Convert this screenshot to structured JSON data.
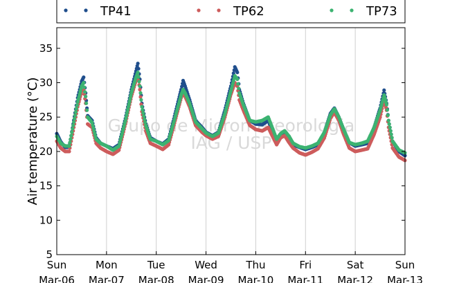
{
  "chart_data": {
    "type": "scatter",
    "ylabel": "Air temperature (°C)",
    "xlabel": "",
    "ylim": [
      5,
      38
    ],
    "yticks": [
      5,
      10,
      15,
      20,
      25,
      30,
      35
    ],
    "xlim": [
      0,
      7
    ],
    "xticks": [
      {
        "day": "Sun",
        "date": "Mar-06"
      },
      {
        "day": "Mon",
        "date": "Mar-07"
      },
      {
        "day": "Tue",
        "date": "Mar-08"
      },
      {
        "day": "Wed",
        "date": "Mar-09"
      },
      {
        "day": "Thu",
        "date": "Mar-10"
      },
      {
        "day": "Fri",
        "date": "Mar-11"
      },
      {
        "day": "Sat",
        "date": "Mar-12"
      },
      {
        "day": "Sun",
        "date": "Mar-13"
      }
    ],
    "grid": "vertical",
    "legend_position": "top",
    "watermark": [
      "Grupo de Micrometeorologia",
      "IAG / USP"
    ],
    "series": [
      {
        "name": "TP41",
        "color": "#1f4e8c",
        "points": [
          [
            0.0,
            22.6
          ],
          [
            0.08,
            21.4
          ],
          [
            0.17,
            20.6
          ],
          [
            0.25,
            20.6
          ],
          [
            0.33,
            24.0
          ],
          [
            0.42,
            27.8
          ],
          [
            0.5,
            30.2
          ],
          [
            0.54,
            30.8
          ],
          [
            0.58,
            28.5
          ],
          [
            0.62,
            25.2
          ],
          [
            0.71,
            24.5
          ],
          [
            0.79,
            22.0
          ],
          [
            0.88,
            21.2
          ],
          [
            1.0,
            20.8
          ],
          [
            1.13,
            20.4
          ],
          [
            1.25,
            21.0
          ],
          [
            1.38,
            24.8
          ],
          [
            1.5,
            29.0
          ],
          [
            1.58,
            31.3
          ],
          [
            1.63,
            32.8
          ],
          [
            1.67,
            30.5
          ],
          [
            1.71,
            27.0
          ],
          [
            1.79,
            24.0
          ],
          [
            1.88,
            22.0
          ],
          [
            2.0,
            21.5
          ],
          [
            2.13,
            21.1
          ],
          [
            2.25,
            21.8
          ],
          [
            2.38,
            25.5
          ],
          [
            2.5,
            29.0
          ],
          [
            2.54,
            30.3
          ],
          [
            2.58,
            29.5
          ],
          [
            2.67,
            27.5
          ],
          [
            2.79,
            24.5
          ],
          [
            2.92,
            23.5
          ],
          [
            3.0,
            22.8
          ],
          [
            3.13,
            22.3
          ],
          [
            3.25,
            22.8
          ],
          [
            3.38,
            26.0
          ],
          [
            3.5,
            29.5
          ],
          [
            3.58,
            32.3
          ],
          [
            3.63,
            31.5
          ],
          [
            3.67,
            29.0
          ],
          [
            3.75,
            27.0
          ],
          [
            3.88,
            24.5
          ],
          [
            4.0,
            24.0
          ],
          [
            4.13,
            23.9
          ],
          [
            4.25,
            24.5
          ],
          [
            4.33,
            23.0
          ],
          [
            4.42,
            21.5
          ],
          [
            4.5,
            22.5
          ],
          [
            4.58,
            22.8
          ],
          [
            4.67,
            22.0
          ],
          [
            4.75,
            21.0
          ],
          [
            4.88,
            20.6
          ],
          [
            5.0,
            20.3
          ],
          [
            5.13,
            20.6
          ],
          [
            5.25,
            21.0
          ],
          [
            5.38,
            22.8
          ],
          [
            5.5,
            25.5
          ],
          [
            5.58,
            26.3
          ],
          [
            5.67,
            25.0
          ],
          [
            5.75,
            23.5
          ],
          [
            5.88,
            21.3
          ],
          [
            6.0,
            20.8
          ],
          [
            6.13,
            21.0
          ],
          [
            6.25,
            21.2
          ],
          [
            6.38,
            23.5
          ],
          [
            6.5,
            26.3
          ],
          [
            6.58,
            28.9
          ],
          [
            6.63,
            27.0
          ],
          [
            6.67,
            24.5
          ],
          [
            6.75,
            21.5
          ],
          [
            6.88,
            20.0
          ],
          [
            7.0,
            19.4
          ]
        ]
      },
      {
        "name": "TP62",
        "color": "#cd5c5c",
        "points": [
          [
            0.0,
            21.5
          ],
          [
            0.08,
            20.5
          ],
          [
            0.17,
            20.0
          ],
          [
            0.25,
            20.0
          ],
          [
            0.33,
            23.0
          ],
          [
            0.42,
            26.5
          ],
          [
            0.5,
            28.7
          ],
          [
            0.54,
            29.0
          ],
          [
            0.58,
            27.0
          ],
          [
            0.62,
            24.0
          ],
          [
            0.71,
            23.5
          ],
          [
            0.79,
            21.2
          ],
          [
            0.88,
            20.5
          ],
          [
            1.0,
            20.0
          ],
          [
            1.13,
            19.6
          ],
          [
            1.25,
            20.2
          ],
          [
            1.38,
            24.0
          ],
          [
            1.5,
            28.0
          ],
          [
            1.58,
            30.0
          ],
          [
            1.63,
            31.0
          ],
          [
            1.67,
            29.0
          ],
          [
            1.71,
            25.8
          ],
          [
            1.79,
            23.0
          ],
          [
            1.88,
            21.2
          ],
          [
            2.0,
            20.8
          ],
          [
            2.13,
            20.3
          ],
          [
            2.25,
            21.0
          ],
          [
            2.38,
            24.5
          ],
          [
            2.5,
            27.8
          ],
          [
            2.54,
            28.5
          ],
          [
            2.58,
            28.0
          ],
          [
            2.67,
            26.5
          ],
          [
            2.79,
            23.8
          ],
          [
            2.92,
            22.8
          ],
          [
            3.0,
            22.3
          ],
          [
            3.13,
            21.8
          ],
          [
            3.25,
            22.2
          ],
          [
            3.38,
            25.0
          ],
          [
            3.5,
            28.3
          ],
          [
            3.58,
            30.0
          ],
          [
            3.63,
            29.5
          ],
          [
            3.67,
            27.5
          ],
          [
            3.75,
            26.0
          ],
          [
            3.88,
            23.8
          ],
          [
            4.0,
            23.2
          ],
          [
            4.13,
            23.0
          ],
          [
            4.25,
            23.5
          ],
          [
            4.33,
            22.3
          ],
          [
            4.42,
            21.0
          ],
          [
            4.5,
            22.0
          ],
          [
            4.58,
            22.3
          ],
          [
            4.67,
            21.3
          ],
          [
            4.75,
            20.5
          ],
          [
            4.88,
            19.8
          ],
          [
            5.0,
            19.5
          ],
          [
            5.13,
            19.9
          ],
          [
            5.25,
            20.4
          ],
          [
            5.38,
            22.0
          ],
          [
            5.5,
            24.8
          ],
          [
            5.58,
            25.7
          ],
          [
            5.67,
            24.5
          ],
          [
            5.75,
            22.8
          ],
          [
            5.88,
            20.5
          ],
          [
            6.0,
            20.0
          ],
          [
            6.13,
            20.2
          ],
          [
            6.25,
            20.4
          ],
          [
            6.38,
            22.5
          ],
          [
            6.5,
            25.0
          ],
          [
            6.58,
            27.5
          ],
          [
            6.63,
            26.0
          ],
          [
            6.67,
            23.5
          ],
          [
            6.75,
            20.5
          ],
          [
            6.88,
            19.2
          ],
          [
            7.0,
            18.7
          ]
        ]
      },
      {
        "name": "TP73",
        "color": "#3cb371",
        "points": [
          [
            0.0,
            22.2
          ],
          [
            0.08,
            21.2
          ],
          [
            0.17,
            20.8
          ],
          [
            0.25,
            20.8
          ],
          [
            0.33,
            23.8
          ],
          [
            0.42,
            27.2
          ],
          [
            0.5,
            29.5
          ],
          [
            0.54,
            30.0
          ],
          [
            0.58,
            28.0
          ],
          [
            0.62,
            25.0
          ],
          [
            0.71,
            24.2
          ],
          [
            0.79,
            21.8
          ],
          [
            0.88,
            21.2
          ],
          [
            1.0,
            20.8
          ],
          [
            1.13,
            20.2
          ],
          [
            1.25,
            20.8
          ],
          [
            1.38,
            24.5
          ],
          [
            1.5,
            28.5
          ],
          [
            1.58,
            30.5
          ],
          [
            1.63,
            31.5
          ],
          [
            1.67,
            29.5
          ],
          [
            1.71,
            26.5
          ],
          [
            1.79,
            23.8
          ],
          [
            1.88,
            21.8
          ],
          [
            2.0,
            21.5
          ],
          [
            2.13,
            21.0
          ],
          [
            2.25,
            21.6
          ],
          [
            2.38,
            25.0
          ],
          [
            2.5,
            28.2
          ],
          [
            2.54,
            29.0
          ],
          [
            2.58,
            28.5
          ],
          [
            2.67,
            27.0
          ],
          [
            2.79,
            24.3
          ],
          [
            2.92,
            23.3
          ],
          [
            3.0,
            22.7
          ],
          [
            3.13,
            22.2
          ],
          [
            3.25,
            22.7
          ],
          [
            3.38,
            25.5
          ],
          [
            3.5,
            28.8
          ],
          [
            3.58,
            31.0
          ],
          [
            3.63,
            30.5
          ],
          [
            3.67,
            28.5
          ],
          [
            3.75,
            26.8
          ],
          [
            3.88,
            24.5
          ],
          [
            4.0,
            24.3
          ],
          [
            4.13,
            24.5
          ],
          [
            4.25,
            25.0
          ],
          [
            4.33,
            23.5
          ],
          [
            4.42,
            21.8
          ],
          [
            4.5,
            22.6
          ],
          [
            4.58,
            23.0
          ],
          [
            4.67,
            22.2
          ],
          [
            4.75,
            21.2
          ],
          [
            4.88,
            20.7
          ],
          [
            5.0,
            20.5
          ],
          [
            5.13,
            20.8
          ],
          [
            5.25,
            21.2
          ],
          [
            5.38,
            22.8
          ],
          [
            5.5,
            25.3
          ],
          [
            5.58,
            26.2
          ],
          [
            5.67,
            25.0
          ],
          [
            5.75,
            23.5
          ],
          [
            5.88,
            21.3
          ],
          [
            6.0,
            21.0
          ],
          [
            6.13,
            21.2
          ],
          [
            6.25,
            21.5
          ],
          [
            6.38,
            23.5
          ],
          [
            6.5,
            26.0
          ],
          [
            6.58,
            28.2
          ],
          [
            6.63,
            26.8
          ],
          [
            6.67,
            24.5
          ],
          [
            6.75,
            21.5
          ],
          [
            6.88,
            20.2
          ],
          [
            7.0,
            19.8
          ]
        ]
      }
    ]
  }
}
